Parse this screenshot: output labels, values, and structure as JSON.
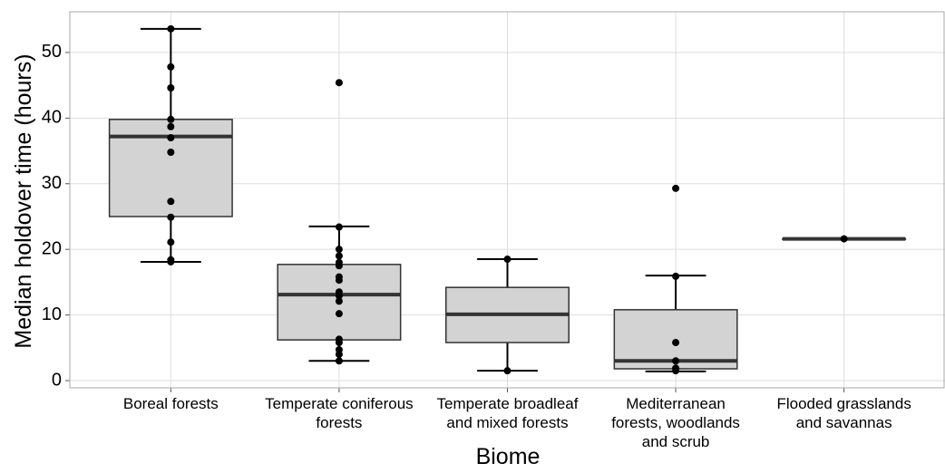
{
  "chart_data": {
    "type": "box",
    "x_label": "Biome",
    "y_label": "Median holdover time (hours)",
    "categories": [
      [
        "Boreal forests"
      ],
      [
        "Temperate coniferous",
        "forests"
      ],
      [
        "Temperate broadleaf",
        "and mixed forests"
      ],
      [
        "Mediterranean",
        "forests, woodlands",
        "and scrub"
      ],
      [
        "Flooded grasslands",
        "and savannas"
      ]
    ],
    "boxes": [
      {
        "whislo": 18.1,
        "q1": 25.0,
        "med": 37.2,
        "q3": 39.8,
        "whishi": 53.6
      },
      {
        "whislo": 3.0,
        "q1": 6.2,
        "med": 13.1,
        "q3": 17.7,
        "whishi": 23.5
      },
      {
        "whislo": 1.5,
        "q1": 5.8,
        "med": 10.1,
        "q3": 14.2,
        "whishi": 18.5
      },
      {
        "whislo": 1.4,
        "q1": 1.8,
        "med": 3.0,
        "q3": 10.8,
        "whishi": 16.0
      },
      {
        "whislo": 21.6,
        "q1": 21.6,
        "med": 21.6,
        "q3": 21.6,
        "whishi": 21.6
      }
    ],
    "points": [
      [
        53.6,
        47.8,
        44.6,
        39.8,
        38.7,
        37.0,
        34.8,
        27.3,
        24.9,
        21.1,
        18.4,
        18.1
      ],
      [
        45.4,
        23.4,
        20.0,
        19.0,
        18.0,
        17.5,
        15.8,
        15.3,
        13.5,
        12.9,
        12.1,
        10.2,
        6.3,
        5.8,
        4.7,
        4.0,
        3.0
      ],
      [
        18.5,
        1.5
      ],
      [
        29.3,
        15.9,
        5.8,
        3.0,
        1.9,
        1.5
      ],
      [
        21.6
      ]
    ],
    "color": "#d3d3d3",
    "ylim": [
      -1.1,
      56.2
    ],
    "yticks": [
      0,
      10,
      20,
      30,
      40,
      50
    ],
    "grid": true
  }
}
